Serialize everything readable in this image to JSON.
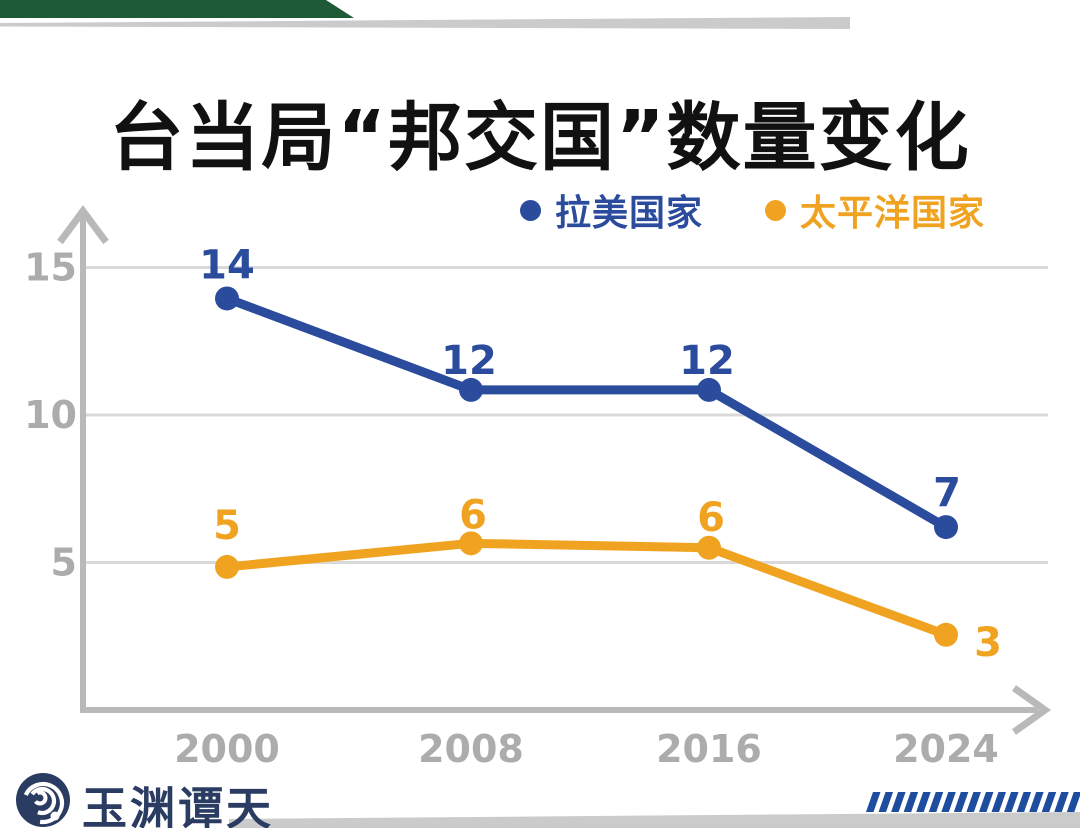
{
  "header": {
    "title": "台当局“邦交国”数量变化"
  },
  "legend": [
    {
      "label": "拉美国家",
      "color": "#2B4B9D"
    },
    {
      "label": "太平洋国家",
      "color": "#F0A321"
    }
  ],
  "chart_data": {
    "type": "line",
    "title": "台当局“邦交国”数量变化",
    "categories": [
      "2000",
      "2008",
      "2016",
      "2024"
    ],
    "series": [
      {
        "name": "拉美国家",
        "color": "#2B4B9D",
        "values": [
          14,
          12,
          12,
          7
        ],
        "display_values": [
          13.95,
          10.85,
          10.85,
          6.2
        ],
        "label_offsets": [
          [
            0,
            -20
          ],
          [
            -2,
            -16
          ],
          [
            -2,
            -16
          ],
          [
            1,
            -21
          ]
        ]
      },
      {
        "name": "太平洋国家",
        "color": "#F0A321",
        "values": [
          5,
          6,
          6,
          3
        ],
        "display_values": [
          4.85,
          5.65,
          5.5,
          2.55
        ],
        "label_offsets": [
          [
            0,
            -28
          ],
          [
            2,
            -15
          ],
          [
            2,
            -17
          ],
          [
            42,
            21
          ]
        ]
      }
    ],
    "xlabel": "",
    "ylabel": "",
    "yticks": [
      5,
      10,
      15
    ],
    "ylim": [
      0,
      16
    ],
    "grid": true,
    "legend_position": "top"
  },
  "footer": {
    "logo_text": "玉渊谭天"
  },
  "colors": {
    "title_black": "#111111",
    "accent_green": "#1F5A38",
    "decor_gray": "#CBCBCB",
    "axis_gray": "#B9B9B9",
    "grid_gray": "#D9D9D9",
    "tick_gray": "#ACACAC",
    "latam_blue": "#2B4B9D",
    "pacific_orange": "#F0A321",
    "stripe_blue": "#1E4C9F",
    "logo_navy": "#2B3C62"
  }
}
